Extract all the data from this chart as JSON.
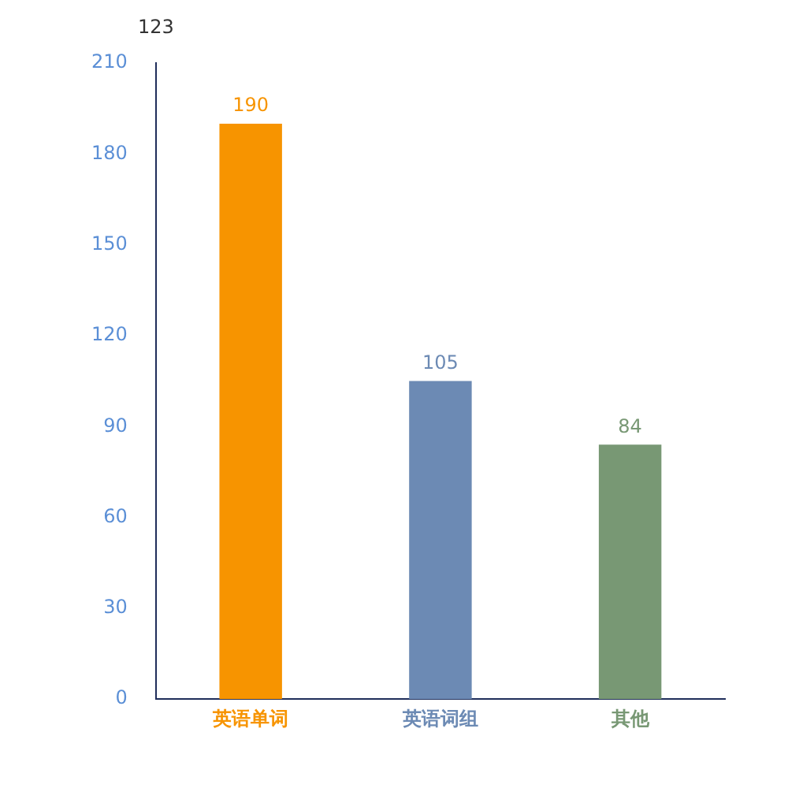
{
  "chart_data": {
    "type": "bar",
    "title": "123",
    "categories": [
      "英语单词",
      "英语词组",
      "其他"
    ],
    "values": [
      190,
      105,
      84
    ],
    "colors": [
      "#f79400",
      "#6c8ab4",
      "#789874"
    ],
    "ylim": [
      0,
      210
    ],
    "yticks": [
      0,
      30,
      60,
      90,
      120,
      150,
      180,
      210
    ],
    "grid": false,
    "legend": false,
    "data_labels": true
  }
}
